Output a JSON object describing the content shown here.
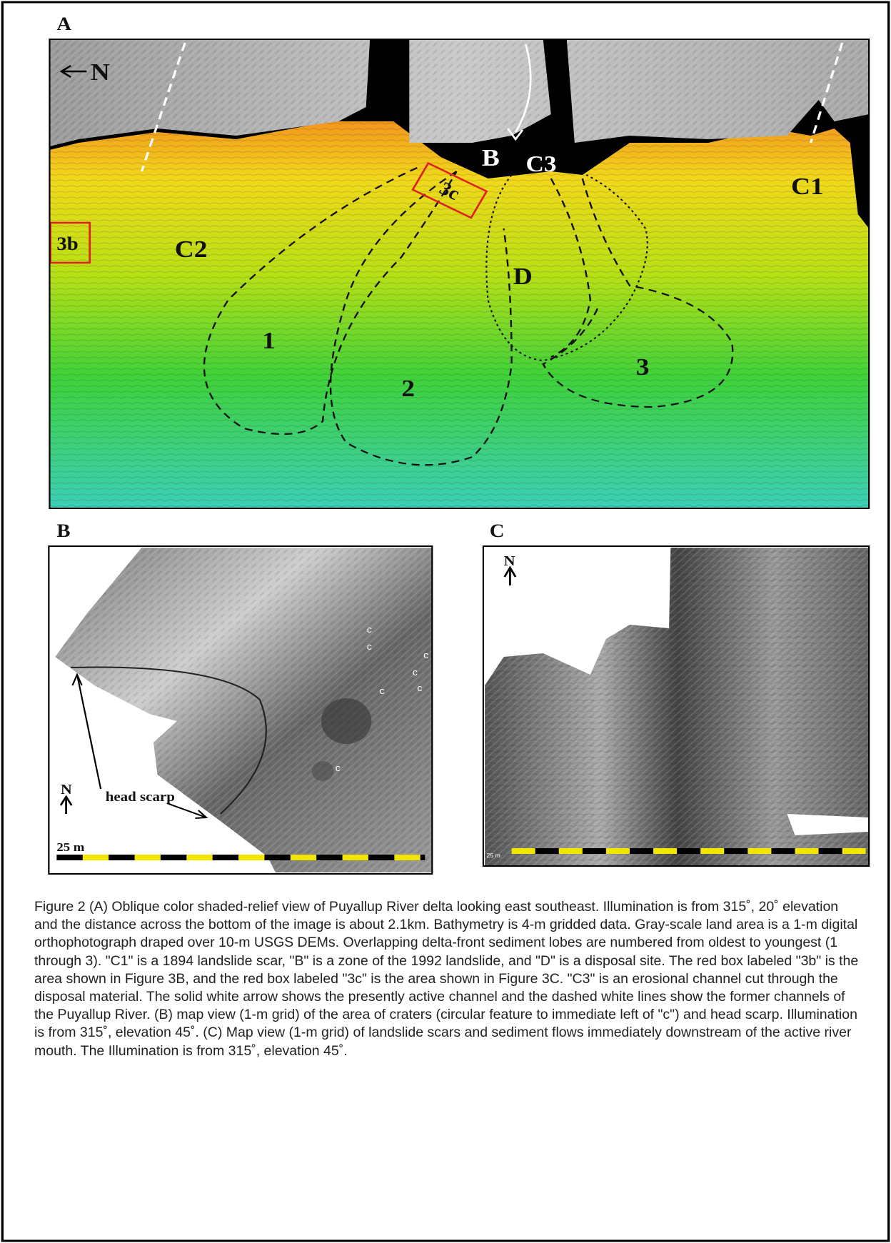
{
  "panels": {
    "a": {
      "label": "A",
      "north": "N",
      "features": {
        "b": "B",
        "c3": "C3",
        "c1": "C1",
        "c2": "C2",
        "d": "D",
        "box_3b": "3b",
        "box_3c": "3c"
      },
      "lobes": [
        "1",
        "2",
        "3"
      ]
    },
    "b": {
      "label": "B",
      "north": "N",
      "crater": "c",
      "head_scarp": "head scarp",
      "scale": "25 m"
    },
    "c": {
      "label": "C",
      "north": "N",
      "scale": "25 m"
    }
  },
  "caption": "Figure 2 (A) Oblique color shaded-relief view of Puyallup River delta looking east southeast.  Illumination is from 315˚, 20˚ elevation and the distance across the bottom of the image is about 2.1km.  Bathymetry is 4-m gridded data.  Gray-scale land area is a 1-m digital orthophotograph draped over 10-m USGS DEMs.  Overlapping delta-front sediment lobes are numbered from oldest to youngest (1 through 3).  \"C1\" is a 1894 landslide scar, \"B\" is a zone of the 1992 landslide, and \"D\" is a disposal site.  The red box labeled \"3b\" is the area shown in Figure 3B, and the red box labeled \"3c\" is the area shown in Figure 3C.  \"C3\" is an erosional channel cut through the disposal material.  The solid white arrow shows the presently active channel and the dashed white lines show the former channels of the Puyallup River. (B) map view (1-m grid) of the area of craters (circular feature to immediate left of \"c\") and head scarp.  Illumination is from 315˚, elevation 45˚.  (C) Map view (1-m grid) of landslide scars and sediment flows immediately downstream of the active river mouth.  The Illumination is from 315˚, elevation 45˚."
}
